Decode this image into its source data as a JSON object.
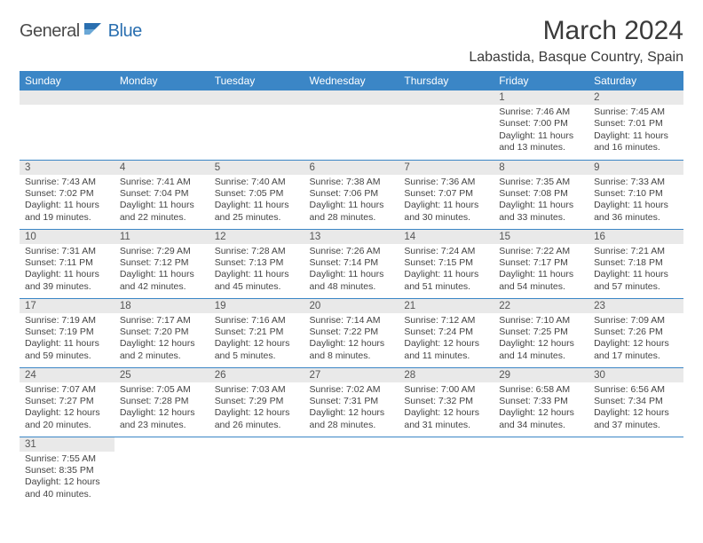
{
  "logo": {
    "general": "General",
    "blue": "Blue"
  },
  "title": "March 2024",
  "location": "Labastida, Basque Country, Spain",
  "colors": {
    "header_bg": "#3b86c6",
    "header_text": "#ffffff",
    "daynum_bg": "#e9e9e9",
    "rule": "#3b86c6",
    "logo_blue": "#2a6fb0",
    "logo_gray": "#4a4a4a"
  },
  "weekdays": [
    "Sunday",
    "Monday",
    "Tuesday",
    "Wednesday",
    "Thursday",
    "Friday",
    "Saturday"
  ],
  "weeks": [
    [
      null,
      null,
      null,
      null,
      null,
      {
        "n": "1",
        "sr": "Sunrise: 7:46 AM",
        "ss": "Sunset: 7:00 PM",
        "dl1": "Daylight: 11 hours",
        "dl2": "and 13 minutes."
      },
      {
        "n": "2",
        "sr": "Sunrise: 7:45 AM",
        "ss": "Sunset: 7:01 PM",
        "dl1": "Daylight: 11 hours",
        "dl2": "and 16 minutes."
      }
    ],
    [
      {
        "n": "3",
        "sr": "Sunrise: 7:43 AM",
        "ss": "Sunset: 7:02 PM",
        "dl1": "Daylight: 11 hours",
        "dl2": "and 19 minutes."
      },
      {
        "n": "4",
        "sr": "Sunrise: 7:41 AM",
        "ss": "Sunset: 7:04 PM",
        "dl1": "Daylight: 11 hours",
        "dl2": "and 22 minutes."
      },
      {
        "n": "5",
        "sr": "Sunrise: 7:40 AM",
        "ss": "Sunset: 7:05 PM",
        "dl1": "Daylight: 11 hours",
        "dl2": "and 25 minutes."
      },
      {
        "n": "6",
        "sr": "Sunrise: 7:38 AM",
        "ss": "Sunset: 7:06 PM",
        "dl1": "Daylight: 11 hours",
        "dl2": "and 28 minutes."
      },
      {
        "n": "7",
        "sr": "Sunrise: 7:36 AM",
        "ss": "Sunset: 7:07 PM",
        "dl1": "Daylight: 11 hours",
        "dl2": "and 30 minutes."
      },
      {
        "n": "8",
        "sr": "Sunrise: 7:35 AM",
        "ss": "Sunset: 7:08 PM",
        "dl1": "Daylight: 11 hours",
        "dl2": "and 33 minutes."
      },
      {
        "n": "9",
        "sr": "Sunrise: 7:33 AM",
        "ss": "Sunset: 7:10 PM",
        "dl1": "Daylight: 11 hours",
        "dl2": "and 36 minutes."
      }
    ],
    [
      {
        "n": "10",
        "sr": "Sunrise: 7:31 AM",
        "ss": "Sunset: 7:11 PM",
        "dl1": "Daylight: 11 hours",
        "dl2": "and 39 minutes."
      },
      {
        "n": "11",
        "sr": "Sunrise: 7:29 AM",
        "ss": "Sunset: 7:12 PM",
        "dl1": "Daylight: 11 hours",
        "dl2": "and 42 minutes."
      },
      {
        "n": "12",
        "sr": "Sunrise: 7:28 AM",
        "ss": "Sunset: 7:13 PM",
        "dl1": "Daylight: 11 hours",
        "dl2": "and 45 minutes."
      },
      {
        "n": "13",
        "sr": "Sunrise: 7:26 AM",
        "ss": "Sunset: 7:14 PM",
        "dl1": "Daylight: 11 hours",
        "dl2": "and 48 minutes."
      },
      {
        "n": "14",
        "sr": "Sunrise: 7:24 AM",
        "ss": "Sunset: 7:15 PM",
        "dl1": "Daylight: 11 hours",
        "dl2": "and 51 minutes."
      },
      {
        "n": "15",
        "sr": "Sunrise: 7:22 AM",
        "ss": "Sunset: 7:17 PM",
        "dl1": "Daylight: 11 hours",
        "dl2": "and 54 minutes."
      },
      {
        "n": "16",
        "sr": "Sunrise: 7:21 AM",
        "ss": "Sunset: 7:18 PM",
        "dl1": "Daylight: 11 hours",
        "dl2": "and 57 minutes."
      }
    ],
    [
      {
        "n": "17",
        "sr": "Sunrise: 7:19 AM",
        "ss": "Sunset: 7:19 PM",
        "dl1": "Daylight: 11 hours",
        "dl2": "and 59 minutes."
      },
      {
        "n": "18",
        "sr": "Sunrise: 7:17 AM",
        "ss": "Sunset: 7:20 PM",
        "dl1": "Daylight: 12 hours",
        "dl2": "and 2 minutes."
      },
      {
        "n": "19",
        "sr": "Sunrise: 7:16 AM",
        "ss": "Sunset: 7:21 PM",
        "dl1": "Daylight: 12 hours",
        "dl2": "and 5 minutes."
      },
      {
        "n": "20",
        "sr": "Sunrise: 7:14 AM",
        "ss": "Sunset: 7:22 PM",
        "dl1": "Daylight: 12 hours",
        "dl2": "and 8 minutes."
      },
      {
        "n": "21",
        "sr": "Sunrise: 7:12 AM",
        "ss": "Sunset: 7:24 PM",
        "dl1": "Daylight: 12 hours",
        "dl2": "and 11 minutes."
      },
      {
        "n": "22",
        "sr": "Sunrise: 7:10 AM",
        "ss": "Sunset: 7:25 PM",
        "dl1": "Daylight: 12 hours",
        "dl2": "and 14 minutes."
      },
      {
        "n": "23",
        "sr": "Sunrise: 7:09 AM",
        "ss": "Sunset: 7:26 PM",
        "dl1": "Daylight: 12 hours",
        "dl2": "and 17 minutes."
      }
    ],
    [
      {
        "n": "24",
        "sr": "Sunrise: 7:07 AM",
        "ss": "Sunset: 7:27 PM",
        "dl1": "Daylight: 12 hours",
        "dl2": "and 20 minutes."
      },
      {
        "n": "25",
        "sr": "Sunrise: 7:05 AM",
        "ss": "Sunset: 7:28 PM",
        "dl1": "Daylight: 12 hours",
        "dl2": "and 23 minutes."
      },
      {
        "n": "26",
        "sr": "Sunrise: 7:03 AM",
        "ss": "Sunset: 7:29 PM",
        "dl1": "Daylight: 12 hours",
        "dl2": "and 26 minutes."
      },
      {
        "n": "27",
        "sr": "Sunrise: 7:02 AM",
        "ss": "Sunset: 7:31 PM",
        "dl1": "Daylight: 12 hours",
        "dl2": "and 28 minutes."
      },
      {
        "n": "28",
        "sr": "Sunrise: 7:00 AM",
        "ss": "Sunset: 7:32 PM",
        "dl1": "Daylight: 12 hours",
        "dl2": "and 31 minutes."
      },
      {
        "n": "29",
        "sr": "Sunrise: 6:58 AM",
        "ss": "Sunset: 7:33 PM",
        "dl1": "Daylight: 12 hours",
        "dl2": "and 34 minutes."
      },
      {
        "n": "30",
        "sr": "Sunrise: 6:56 AM",
        "ss": "Sunset: 7:34 PM",
        "dl1": "Daylight: 12 hours",
        "dl2": "and 37 minutes."
      }
    ],
    [
      {
        "n": "31",
        "sr": "Sunrise: 7:55 AM",
        "ss": "Sunset: 8:35 PM",
        "dl1": "Daylight: 12 hours",
        "dl2": "and 40 minutes."
      },
      null,
      null,
      null,
      null,
      null,
      null
    ]
  ]
}
